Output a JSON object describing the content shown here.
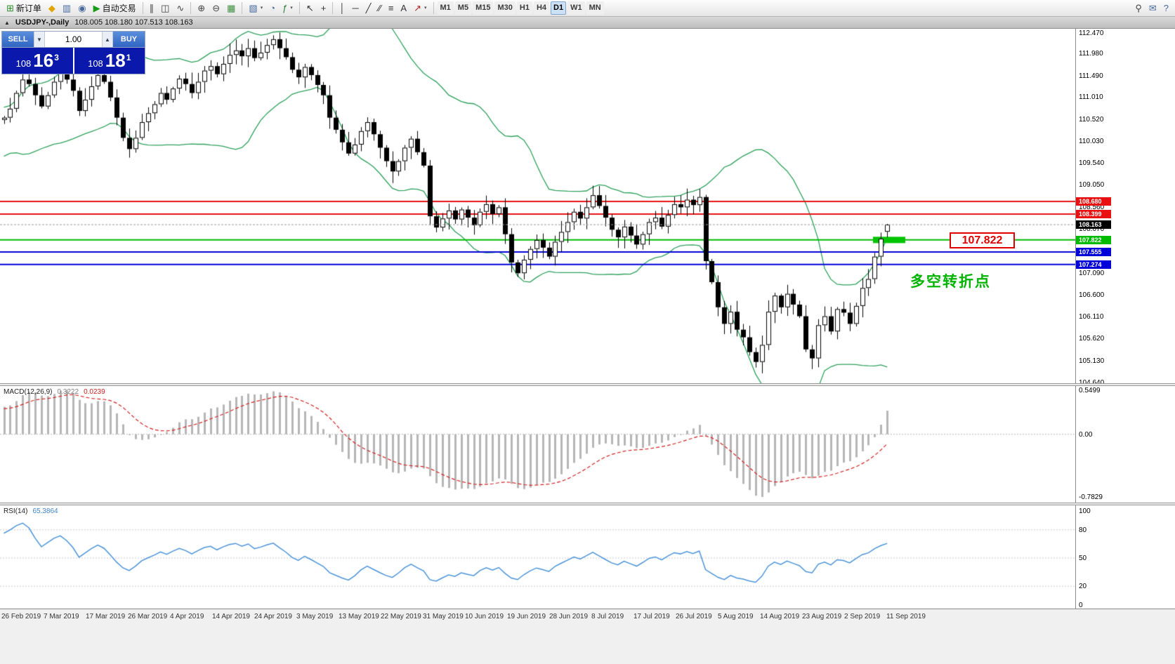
{
  "window": {
    "collapse_icon": "▲",
    "title_symbol": "USDJPY-,Daily",
    "ohlc": "108.005 108.180 107.513 108.163"
  },
  "toolbar": {
    "items": [
      {
        "type": "button",
        "name": "new-order-button",
        "icon": "new-order-icon",
        "label": "新订单"
      },
      {
        "type": "button",
        "name": "metaquotes-button",
        "icon": "metaquotes-icon"
      },
      {
        "type": "button",
        "name": "data-window-button",
        "icon": "data-window-icon"
      },
      {
        "type": "button",
        "name": "community-button",
        "icon": "community-icon"
      },
      {
        "type": "button",
        "name": "autotrading-button",
        "icon": "autotrading-icon",
        "label": "自动交易"
      },
      {
        "type": "sep"
      },
      {
        "type": "button",
        "name": "chart-bars-button",
        "icon": "chart-bars-icon"
      },
      {
        "type": "button",
        "name": "chart-candles-button",
        "icon": "chart-candles-icon"
      },
      {
        "type": "button",
        "name": "chart-line-button",
        "icon": "chart-line-icon"
      },
      {
        "type": "sep"
      },
      {
        "type": "button",
        "name": "zoom-in-button",
        "icon": "zoom-in-icon"
      },
      {
        "type": "button",
        "name": "zoom-out-button",
        "icon": "zoom-out-icon"
      },
      {
        "type": "button",
        "name": "tile-windows-button",
        "icon": "tile-windows-icon"
      },
      {
        "type": "sep"
      },
      {
        "type": "button",
        "name": "new-chart-button",
        "icon": "new-chart-icon",
        "dropdown": true
      },
      {
        "type": "button",
        "name": "profiles-button",
        "icon": "profiles-icon"
      },
      {
        "type": "button",
        "name": "indicators-button",
        "icon": "indicators-icon",
        "dropdown": true
      },
      {
        "type": "sep"
      },
      {
        "type": "button",
        "name": "cursor-button",
        "icon": "cursor-icon"
      },
      {
        "type": "button",
        "name": "crosshair-button",
        "icon": "crosshair-icon"
      },
      {
        "type": "sep"
      },
      {
        "type": "button",
        "name": "vertical-line-button",
        "icon": "vertical-line-icon"
      },
      {
        "type": "button",
        "name": "horizontal-line-button",
        "icon": "horizontal-line-icon"
      },
      {
        "type": "button",
        "name": "trendline-button",
        "icon": "trendline-icon"
      },
      {
        "type": "button",
        "name": "channel-button",
        "icon": "channel-icon"
      },
      {
        "type": "button",
        "name": "fibonacci-button",
        "icon": "fibonacci-icon"
      },
      {
        "type": "button",
        "name": "text-button",
        "icon": "text-icon"
      },
      {
        "type": "button",
        "name": "arrows-button",
        "icon": "arrows-icon",
        "dropdown": true
      },
      {
        "type": "sep"
      }
    ],
    "timeframes": {
      "items": [
        "M1",
        "M5",
        "M15",
        "M30",
        "H1",
        "H4",
        "D1",
        "W1",
        "MN"
      ],
      "active": "D1"
    },
    "right_items": [
      {
        "type": "button",
        "name": "search-button",
        "icon": "search-icon"
      },
      {
        "type": "button",
        "name": "chat-button",
        "icon": "chat-icon"
      },
      {
        "type": "button",
        "name": "help-button",
        "icon": "help-icon"
      }
    ]
  },
  "one_click": {
    "sell_label": "SELL",
    "buy_label": "BUY",
    "volume": "1.00",
    "sell_prefix": "108",
    "sell_big": "16",
    "sell_sup": "3",
    "buy_prefix": "108",
    "buy_big": "18",
    "buy_sup": "1"
  },
  "main_chart": {
    "price_ticks": [
      "112.470",
      "111.980",
      "111.490",
      "111.010",
      "110.520",
      "110.030",
      "109.540",
      "109.050",
      "108.560",
      "108.070",
      "107.580",
      "107.090",
      "106.600",
      "106.110",
      "105.620",
      "105.130",
      "104.640"
    ],
    "levels": [
      {
        "label": "108.680",
        "price": 108.68,
        "color": "#e81010"
      },
      {
        "label": "108.399",
        "price": 108.399,
        "color": "#e81010"
      },
      {
        "label": "107.822",
        "price": 107.822,
        "color": "#00bb00"
      },
      {
        "label": "107.555",
        "price": 107.555,
        "color": "#0000d8"
      },
      {
        "label": "107.274",
        "price": 107.274,
        "color": "#0000d8"
      }
    ],
    "current_price": {
      "label": "108.163",
      "price": 108.163,
      "color": "#000000"
    },
    "highlight": {
      "price": 107.822,
      "color": "#00c400"
    },
    "annotation_price_label": {
      "text": "107.822",
      "color": "#e00000"
    },
    "annotation_text": {
      "text": "多空转折点",
      "color": "#00b400"
    }
  },
  "macd": {
    "label": "MACD(12,26,9)",
    "value_main": "0.3222",
    "value_signal": "0.0239",
    "axis": [
      {
        "label": "0.5499",
        "value": 0.5499
      },
      {
        "label": "0.00",
        "value": 0
      },
      {
        "label": "-0.7829",
        "value": -0.7829
      }
    ]
  },
  "rsi": {
    "label": "RSI(14)",
    "value": "65.3864",
    "axis": [
      {
        "label": "100",
        "value": 100
      },
      {
        "label": "80",
        "value": 80
      },
      {
        "label": "50",
        "value": 50
      },
      {
        "label": "20",
        "value": 20
      },
      {
        "label": "0",
        "value": 0
      }
    ],
    "dotted_levels": [
      80,
      50,
      20
    ]
  },
  "date_axis": [
    "26 Feb 2019",
    "7 Mar 2019",
    "17 Mar 2019",
    "26 Mar 2019",
    "4 Apr 2019",
    "14 Apr 2019",
    "24 Apr 2019",
    "3 May 2019",
    "13 May 2019",
    "22 May 2019",
    "31 May 2019",
    "10 Jun 2019",
    "19 Jun 2019",
    "28 Jun 2019",
    "8 Jul 2019",
    "17 Jul 2019",
    "26 Jul 2019",
    "5 Aug 2019",
    "14 Aug 2019",
    "23 Aug 2019",
    "2 Sep 2019",
    "11 Sep 2019"
  ],
  "chart_data": {
    "type": "candlestick",
    "symbol": "USDJPY-",
    "timeframe": "Daily",
    "ohlc_current": {
      "open": 108.005,
      "high": 108.18,
      "low": 107.513,
      "close": 108.163
    },
    "price_axis_range": [
      104.64,
      112.47
    ],
    "indicators": {
      "bollinger": {
        "period": 20,
        "deviation": 2
      },
      "macd": {
        "fast": 12,
        "slow": 26,
        "signal": 9,
        "current_main": 0.3222,
        "current_signal": 0.0239,
        "panel_range": [
          -0.7829,
          0.5499
        ]
      },
      "rsi": {
        "period": 14,
        "current": 65.3864,
        "panel_range": [
          0,
          100
        ]
      }
    },
    "horizontal_levels": [
      108.68,
      108.399,
      107.822,
      107.555,
      107.274
    ],
    "pre_closes": [
      109.6,
      109.7,
      109.78,
      109.85,
      109.92,
      110.0,
      110.08,
      110.15,
      110.05,
      110.18,
      110.28,
      110.38,
      110.3,
      110.42,
      110.5,
      110.45,
      110.55,
      110.48,
      110.58,
      110.5
    ],
    "closes": [
      110.55,
      110.75,
      111.1,
      111.4,
      111.3,
      111.05,
      110.8,
      111.05,
      111.35,
      111.55,
      111.4,
      111.15,
      110.7,
      110.95,
      111.25,
      111.5,
      111.35,
      111.0,
      110.55,
      110.1,
      109.85,
      110.1,
      110.45,
      110.65,
      110.85,
      111.1,
      110.95,
      111.2,
      111.42,
      111.3,
      111.1,
      111.35,
      111.6,
      111.7,
      111.52,
      111.75,
      111.95,
      112.05,
      111.92,
      112.1,
      111.88,
      112.0,
      112.17,
      112.3,
      112.1,
      111.9,
      111.62,
      111.45,
      111.68,
      111.5,
      111.28,
      111.05,
      110.55,
      110.28,
      110.0,
      109.75,
      109.95,
      110.25,
      110.45,
      110.18,
      109.88,
      109.58,
      109.35,
      109.58,
      109.88,
      110.08,
      109.78,
      109.48,
      108.35,
      108.1,
      108.3,
      108.48,
      108.28,
      108.5,
      108.32,
      108.15,
      108.45,
      108.62,
      108.4,
      108.55,
      107.95,
      107.32,
      107.08,
      107.38,
      107.62,
      107.82,
      107.65,
      107.45,
      107.78,
      108.0,
      108.22,
      108.45,
      108.3,
      108.55,
      108.82,
      108.58,
      108.32,
      108.05,
      107.88,
      108.12,
      107.92,
      107.72,
      107.95,
      108.22,
      108.32,
      108.12,
      108.38,
      108.62,
      108.55,
      108.72,
      108.6,
      108.78,
      107.35,
      106.88,
      106.32,
      105.95,
      106.22,
      105.82,
      105.65,
      105.32,
      105.1,
      105.48,
      106.22,
      106.58,
      106.32,
      106.62,
      106.38,
      106.12,
      105.38,
      105.18,
      105.92,
      106.12,
      105.78,
      106.28,
      106.2,
      105.95,
      106.35,
      106.75,
      106.95,
      107.45,
      107.85,
      108.163
    ],
    "colors": {
      "bands": "#2ca05a",
      "candle_up_fill": "#ffffff",
      "candle_down_fill": "#000000",
      "candle_border": "#000000",
      "macd_hist": "#b6b6b6",
      "macd_signal": "#d42020",
      "rsi_line": "#4a93d9",
      "bid_line": "#9a9a9a",
      "highlight": "#00c400"
    }
  }
}
